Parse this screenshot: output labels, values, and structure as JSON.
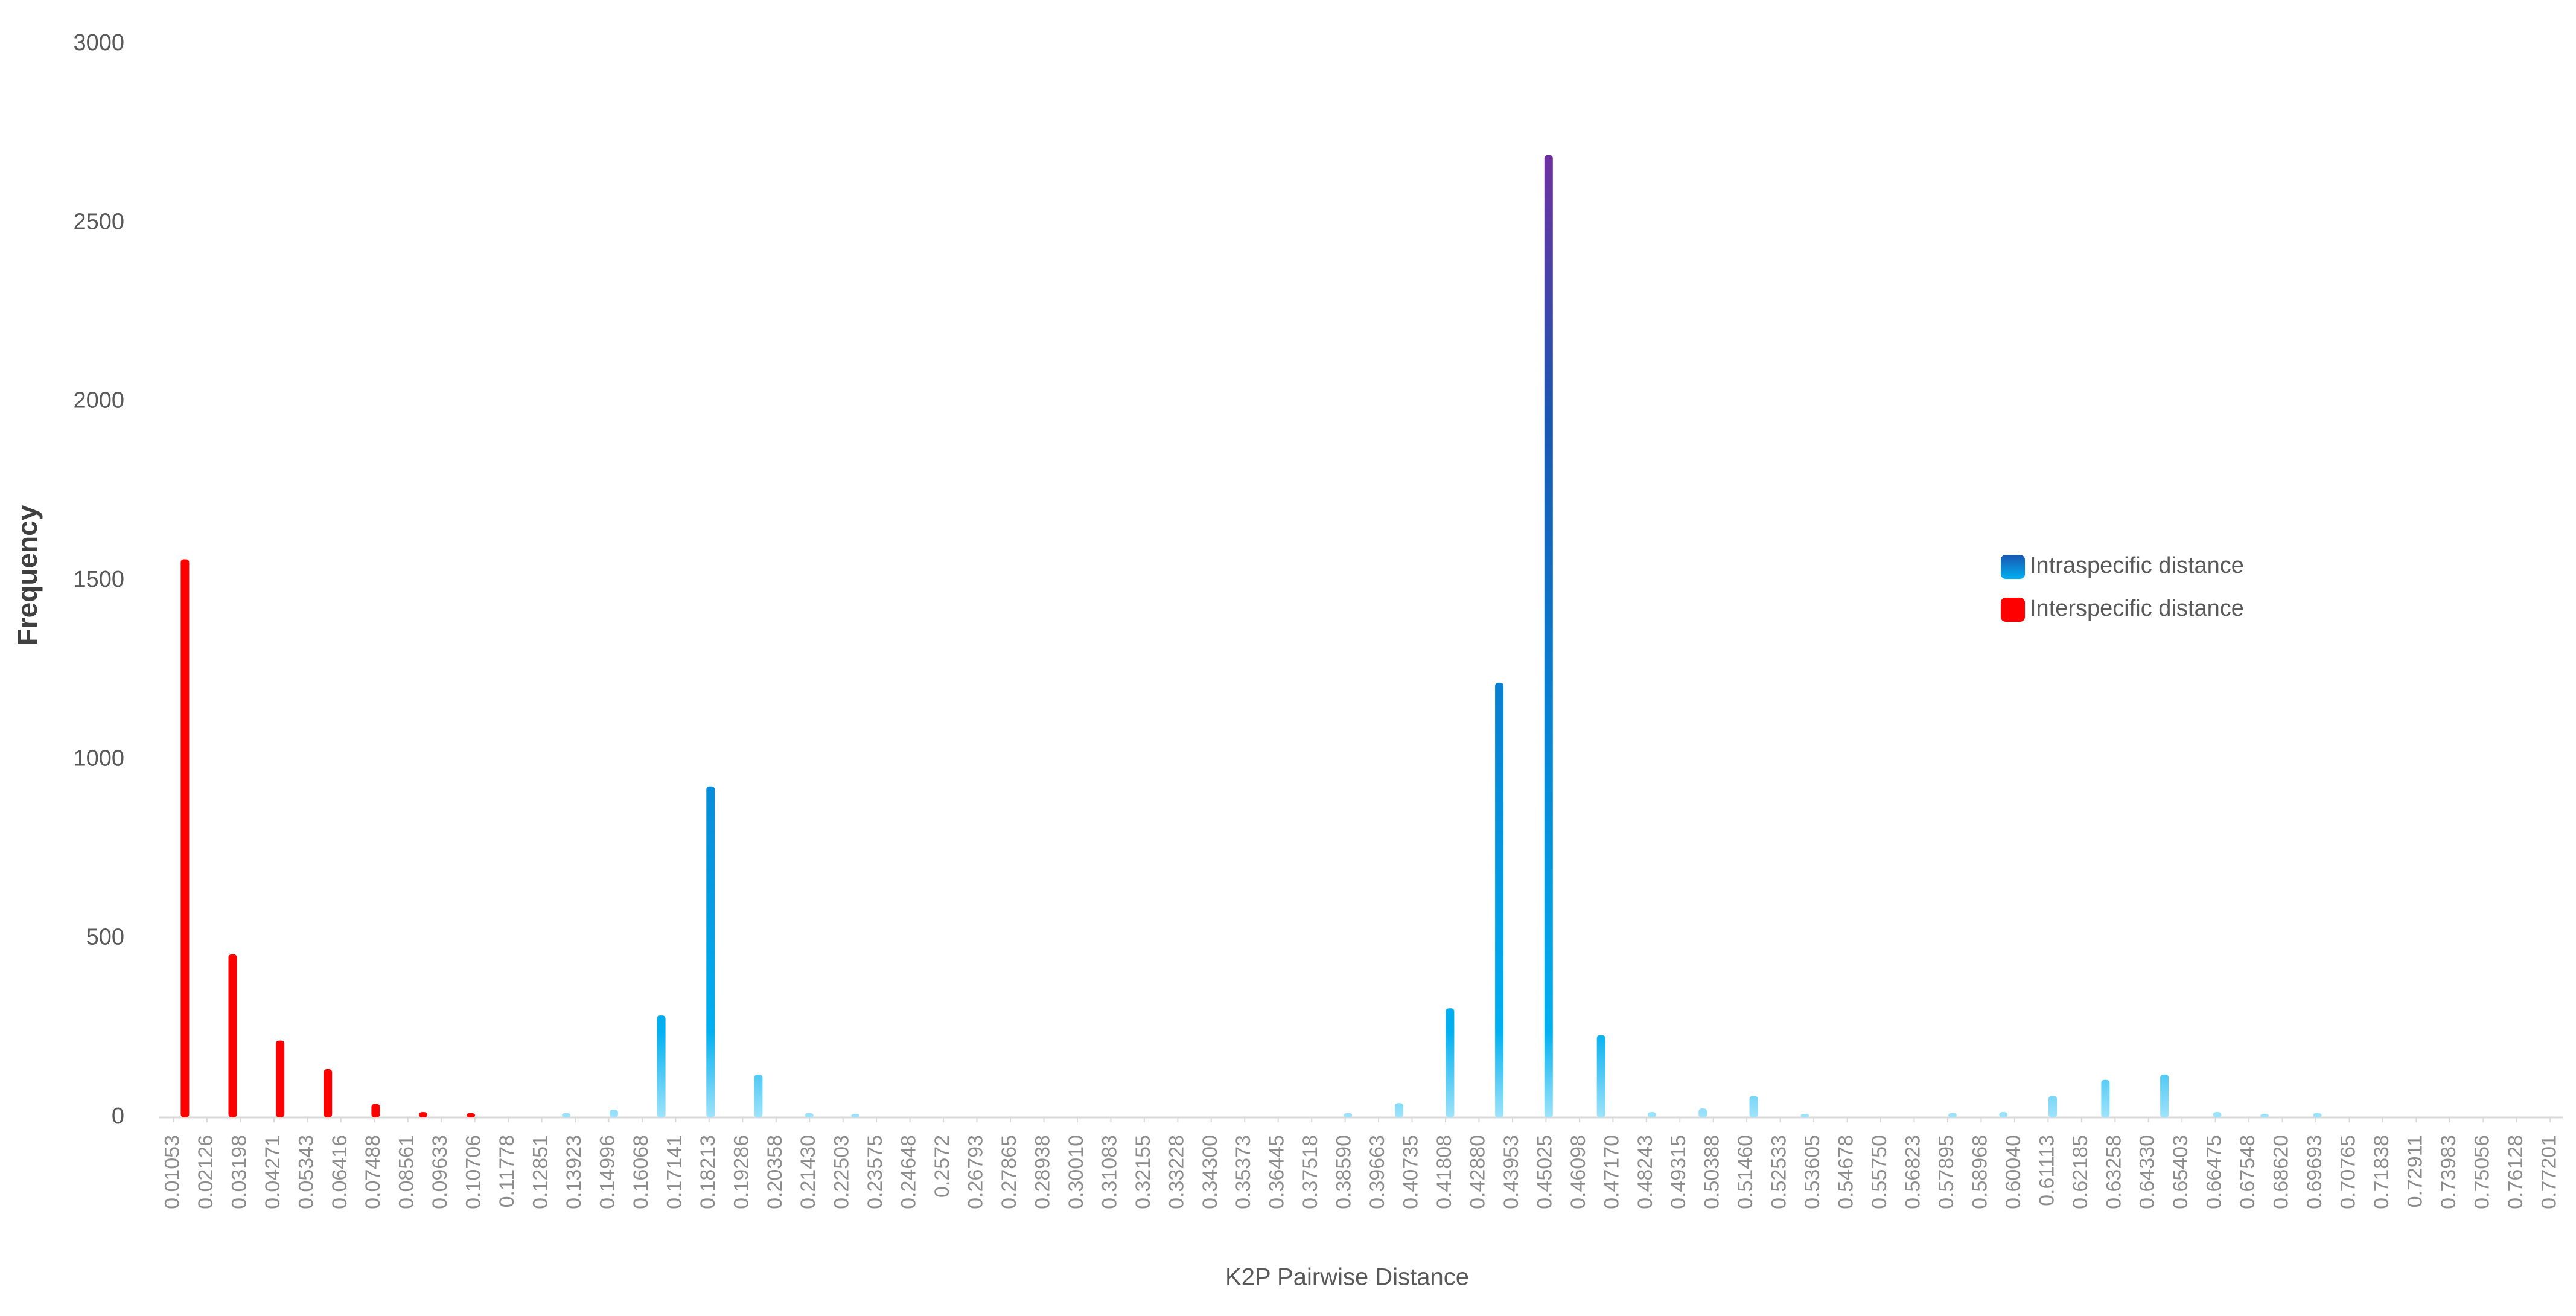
{
  "chart_data": {
    "type": "bar",
    "x_label": "K2P Pairwise Distance",
    "y_label": "Frequency",
    "xlim": [
      0.006,
      0.776
    ],
    "ylim": [
      0,
      3000
    ],
    "yticks": [
      0,
      500,
      1000,
      1500,
      2000,
      2500,
      3000
    ],
    "xticks": [
      0.01053,
      0.02126,
      0.03198,
      0.04271,
      0.05343,
      0.06416,
      0.07488,
      0.08561,
      0.09633,
      0.10706,
      0.11778,
      0.12851,
      0.13923,
      0.14996,
      0.16068,
      0.17141,
      0.18213,
      0.19286,
      0.20358,
      {
        "value": 0.2143,
        "label": "0.21430"
      },
      0.22503,
      0.23575,
      0.24648,
      0.2572,
      0.26793,
      0.27865,
      0.28938,
      {
        "value": 0.3001,
        "label": "0.30010"
      },
      0.31083,
      0.32155,
      0.33228,
      {
        "value": 0.343,
        "label": "0.34300"
      },
      0.35373,
      0.36445,
      0.37518,
      {
        "value": 0.3859,
        "label": "0.38590"
      },
      0.39663,
      0.40735,
      0.41808,
      {
        "value": 0.4288,
        "label": "0.42880"
      },
      0.43953,
      0.45025,
      0.46098,
      {
        "value": 0.4717,
        "label": "0.47170"
      },
      0.48243,
      0.49315,
      0.50388,
      {
        "value": 0.5146,
        "label": "0.51460"
      },
      0.52533,
      0.53605,
      0.54678,
      {
        "value": 0.5575,
        "label": "0.55750"
      },
      0.56823,
      0.57895,
      0.58968,
      {
        "value": 0.6004,
        "label": "0.60040"
      },
      0.61113,
      0.62185,
      0.63258,
      {
        "value": 0.6433,
        "label": "0.64330"
      },
      0.65403,
      0.66475,
      0.67548,
      {
        "value": 0.6862,
        "label": "0.68620"
      },
      0.69693,
      0.70765,
      0.71838,
      0.72911,
      0.73983,
      0.75056,
      0.76128,
      0.77201
    ],
    "legend": "right",
    "series": [
      {
        "name": "Intraspecific distance",
        "color": "#00b0f0",
        "x": [
          0.1363,
          0.1516,
          0.1668,
          0.1826,
          0.1979,
          0.2142,
          0.229,
          0.3868,
          0.4032,
          0.4195,
          0.4353,
          0.4511,
          0.4679,
          0.4842,
          0.5005,
          0.5168,
          0.5332,
          0.5805,
          0.5968,
          0.6126,
          0.6295,
          0.6484,
          0.6653,
          0.6805,
          0.6974
        ],
        "values": [
          12,
          22,
          285,
          925,
          120,
          12,
          10,
          12,
          40,
          305,
          1215,
          2690,
          230,
          15,
          25,
          60,
          10,
          12,
          15,
          60,
          105,
          120,
          15,
          10,
          12
        ]
      },
      {
        "name": "Interspecific distance",
        "color": "#ff0000",
        "x": [
          0.0142,
          0.0295,
          0.0447,
          0.06,
          0.0753,
          0.0905,
          0.1058
        ],
        "values": [
          1560,
          456,
          215,
          135,
          38,
          15,
          12
        ]
      }
    ]
  }
}
